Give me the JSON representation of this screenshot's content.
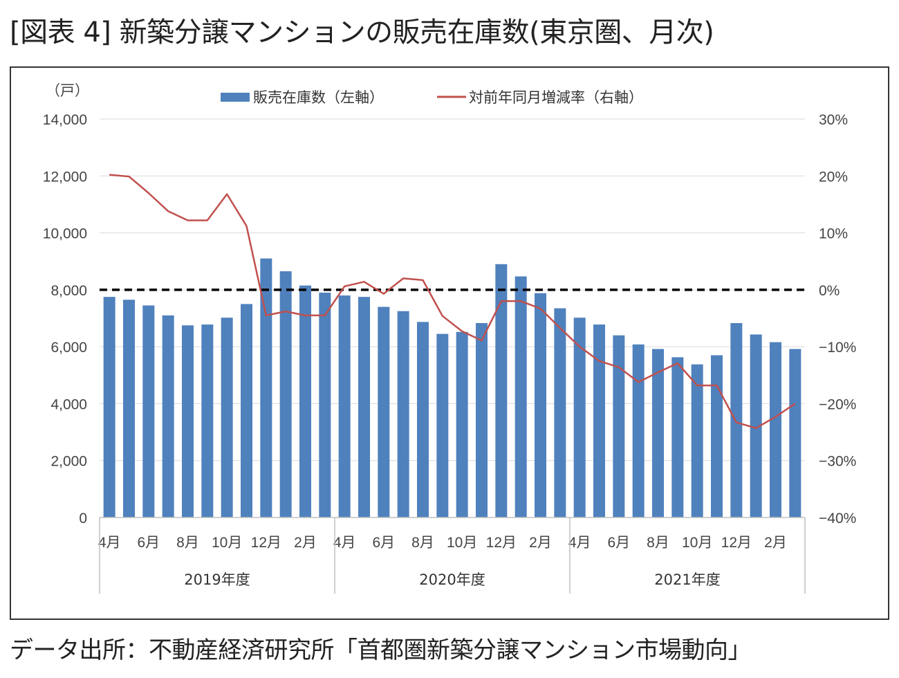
{
  "title": "[図表 4] 新築分譲マンションの販売在庫数(東京圏、月次)",
  "source": "データ出所：不動産経済研究所「首都圏新築分譲マンション市場動向」",
  "chart_data": {
    "type": "bar+line",
    "left_axis": {
      "unit_label": "（戸）",
      "ylim": [
        0,
        14000
      ],
      "ticks": [
        0,
        2000,
        4000,
        6000,
        8000,
        10000,
        12000,
        14000
      ],
      "tick_labels": [
        "0",
        "2,000",
        "4,000",
        "6,000",
        "8,000",
        "10,000",
        "12,000",
        "14,000"
      ]
    },
    "right_axis": {
      "ylim": [
        -40,
        30
      ],
      "ticks": [
        -40,
        -30,
        -20,
        -10,
        0,
        10,
        20,
        30
      ],
      "tick_labels": [
        "−40%",
        "−30%",
        "−20%",
        "−10%",
        "0%",
        "10%",
        "20%",
        "30%"
      ]
    },
    "legend": {
      "placement": "top-center",
      "bar_label": "販売在庫数（左軸）",
      "line_label": "対前年同月増減率（右軸）"
    },
    "colors": {
      "bar": "#4f81bd",
      "line": "#c0504d",
      "reference": "#000000",
      "grid": "#d9d9d9"
    },
    "reference_line": {
      "axis": "left",
      "value": 8000,
      "style": "dashed"
    },
    "x_tick_labels": [
      "4月",
      "6月",
      "8月",
      "10月",
      "12月",
      "2月",
      "4月",
      "6月",
      "8月",
      "10月",
      "12月",
      "2月",
      "4月",
      "6月",
      "8月",
      "10月",
      "12月",
      "2月"
    ],
    "x_tick_months": [
      0,
      2,
      4,
      6,
      8,
      10,
      12,
      14,
      16,
      18,
      20,
      22,
      24,
      26,
      28,
      30,
      32,
      34
    ],
    "groups": [
      {
        "label": "2019年度",
        "start": 0,
        "end": 11
      },
      {
        "label": "2020年度",
        "start": 12,
        "end": 23
      },
      {
        "label": "2021年度",
        "start": 24,
        "end": 35
      }
    ],
    "months": [
      "2019-04",
      "2019-05",
      "2019-06",
      "2019-07",
      "2019-08",
      "2019-09",
      "2019-10",
      "2019-11",
      "2019-12",
      "2020-01",
      "2020-02",
      "2020-03",
      "2020-04",
      "2020-05",
      "2020-06",
      "2020-07",
      "2020-08",
      "2020-09",
      "2020-10",
      "2020-11",
      "2020-12",
      "2021-01",
      "2021-02",
      "2021-03",
      "2021-04",
      "2021-05",
      "2021-06",
      "2021-07",
      "2021-08",
      "2021-09",
      "2021-10",
      "2021-11",
      "2021-12",
      "2022-01",
      "2022-02",
      "2022-03"
    ],
    "series": [
      {
        "name": "販売在庫数（左軸）",
        "axis": "left",
        "type": "bar",
        "values": [
          7750,
          7650,
          7450,
          7100,
          6750,
          6780,
          7020,
          7500,
          9100,
          8650,
          8150,
          7900,
          7800,
          7750,
          7400,
          7250,
          6870,
          6450,
          6520,
          6830,
          8900,
          8470,
          7880,
          7350,
          7020,
          6780,
          6400,
          6080,
          5920,
          5630,
          5380,
          5700,
          6830,
          6430,
          6160,
          5920
        ]
      },
      {
        "name": "対前年同月増減率（右軸）",
        "axis": "right",
        "type": "line",
        "values": [
          20.2,
          19.9,
          17.0,
          13.8,
          12.2,
          12.2,
          16.8,
          11.2,
          -4.5,
          -3.8,
          -4.5,
          -4.5,
          0.6,
          1.4,
          -0.7,
          2.0,
          1.7,
          -4.6,
          -7.3,
          -8.9,
          -2.0,
          -2.0,
          -3.3,
          -6.7,
          -10.0,
          -12.5,
          -13.6,
          -16.2,
          -14.5,
          -12.9,
          -16.8,
          -16.8,
          -23.3,
          -24.3,
          -22.3,
          -20.0
        ]
      }
    ]
  }
}
